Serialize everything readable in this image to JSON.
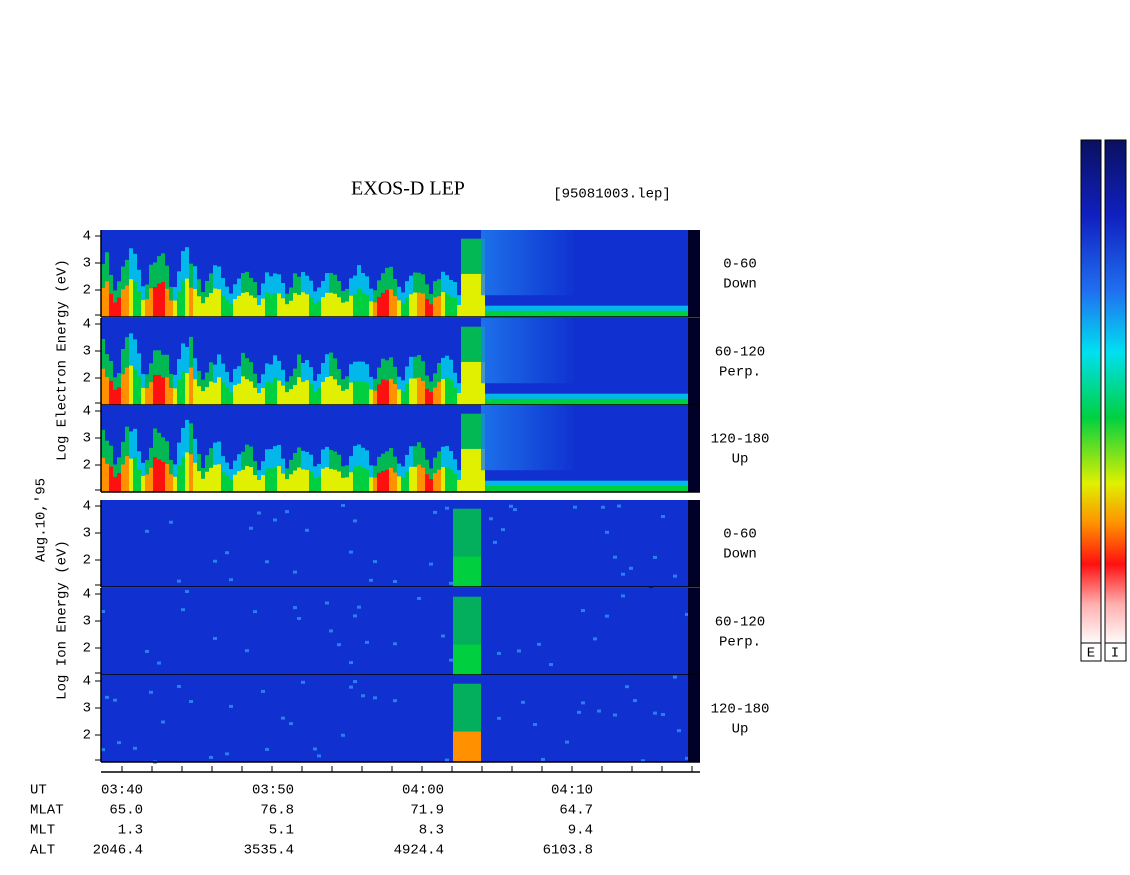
{
  "header": {
    "title": "EXOS-D LEP",
    "file": "[95081003.lep]"
  },
  "y_axis": {
    "electron_label": "Log Electron Energy (eV)",
    "ion_label": "Log Ion Energy (eV)",
    "date": "Aug.10,'95",
    "ticks": [
      4,
      3,
      2
    ]
  },
  "panels": [
    {
      "range": "0-60",
      "direction": "Down"
    },
    {
      "range": "60-120",
      "direction": "Perp."
    },
    {
      "range": "120-180",
      "direction": "Up"
    },
    {
      "range": "0-60",
      "direction": "Down"
    },
    {
      "range": "60-120",
      "direction": "Perp."
    },
    {
      "range": "120-180",
      "direction": "Up"
    }
  ],
  "time_axis": {
    "rows": [
      {
        "label": "UT",
        "values": [
          "03:40",
          "03:50",
          "04:00",
          "04:10"
        ]
      },
      {
        "label": "MLAT",
        "values": [
          "65.0",
          "76.8",
          "71.9",
          "64.7"
        ]
      },
      {
        "label": "MLT",
        "values": [
          "1.3",
          "5.1",
          "8.3",
          "9.4"
        ]
      },
      {
        "label": "ALT",
        "values": [
          "2046.4",
          "3535.4",
          "4924.4",
          "6103.8"
        ]
      }
    ]
  },
  "colorbar": {
    "labels": [
      "E",
      "I"
    ]
  }
}
